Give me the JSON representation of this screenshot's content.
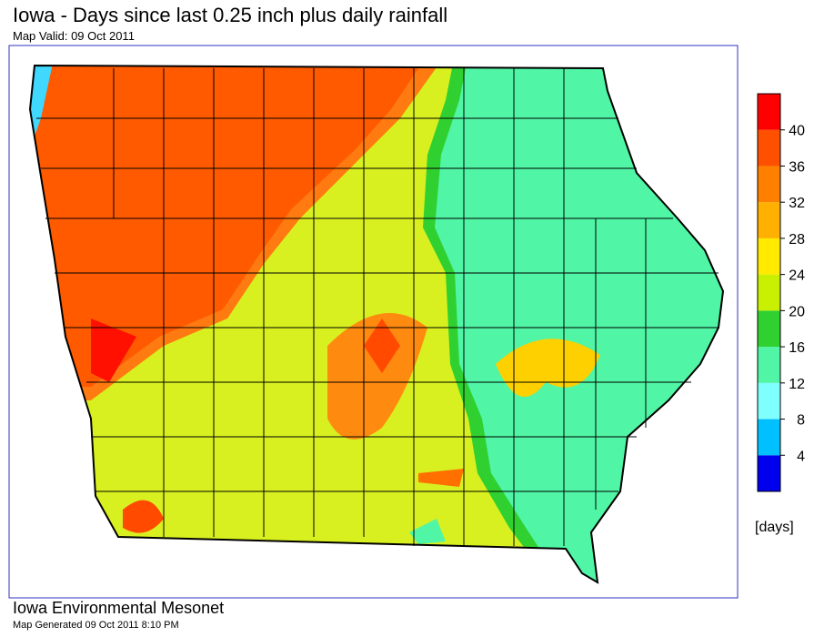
{
  "header": {
    "title": "Iowa - Days since last 0.25 inch plus daily rainfall",
    "subtitle": "Map Valid: 09 Oct 2011"
  },
  "colorbar": {
    "clim": [
      0,
      44
    ],
    "ticks": [
      4,
      8,
      12,
      16,
      20,
      24,
      28,
      32,
      36,
      40
    ],
    "colors": [
      "#0000ee",
      "#00c0ff",
      "#80ffff",
      "#50f5a5",
      "#30d030",
      "#c8f000",
      "#ffea00",
      "#ffb000",
      "#ff8000",
      "#ff5000",
      "#ff0000"
    ],
    "unit": "[days]"
  },
  "footer": {
    "org": "Iowa Environmental Mesonet",
    "generated": "Map Generated 09 Oct 2011 8:10 PM"
  }
}
